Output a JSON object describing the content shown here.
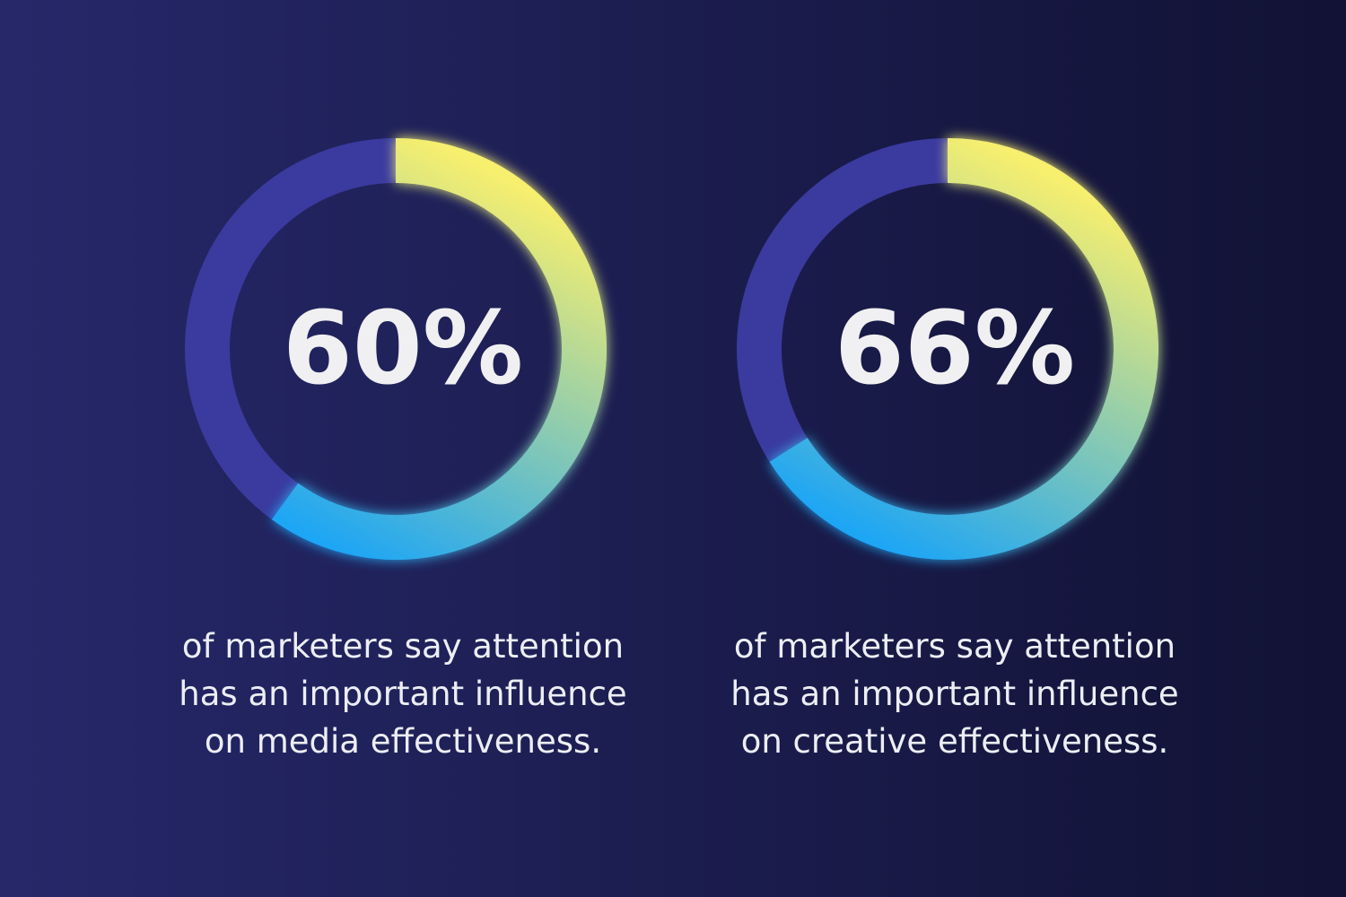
{
  "chart_data": [
    {
      "type": "donut",
      "values": [
        60
      ],
      "value_labels": [
        "60%"
      ],
      "caption": [
        "of marketers say attention",
        "has an important influence",
        "on media effectiveness."
      ],
      "color_start": "#f7ef6e",
      "color_end": "#1fa6f4",
      "track_color": "#3b3a9f"
    },
    {
      "type": "donut",
      "values": [
        66
      ],
      "value_labels": [
        "66%"
      ],
      "caption": [
        "of marketers say attention",
        "has an important influence",
        "on creative effectiveness."
      ],
      "color_start": "#f7ef6e",
      "color_end": "#1fa6f4",
      "track_color": "#3b3a9f"
    }
  ]
}
